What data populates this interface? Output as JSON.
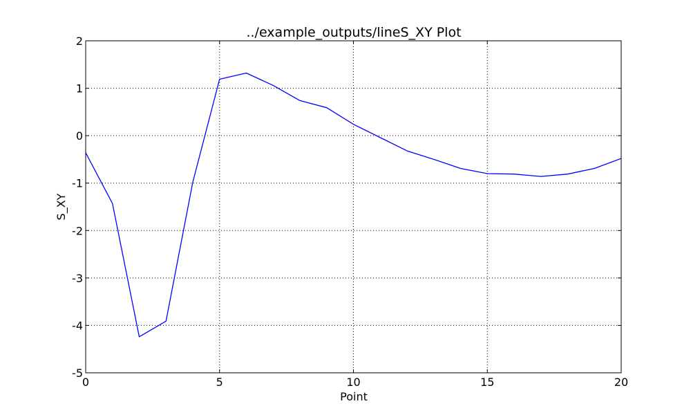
{
  "chart_data": {
    "type": "line",
    "title": "../example_outputs/lineS_XY Plot",
    "xlabel": "Point",
    "ylabel": "S_XY",
    "xlim": [
      0,
      20
    ],
    "ylim": [
      -5,
      2
    ],
    "x_ticks": [
      0,
      5,
      10,
      15,
      20
    ],
    "y_ticks": [
      -5,
      -4,
      -3,
      -2,
      -1,
      0,
      1,
      2
    ],
    "grid": true,
    "series": [
      {
        "color": "#0000ff",
        "x": [
          0,
          1,
          2,
          3,
          4,
          5,
          6,
          7,
          8,
          9,
          10,
          11,
          12,
          13,
          14,
          15,
          16,
          17,
          18,
          19,
          20
        ],
        "y": [
          -0.36,
          -1.43,
          -4.24,
          -3.91,
          -0.98,
          1.19,
          1.32,
          1.06,
          0.74,
          0.59,
          0.24,
          -0.04,
          -0.32,
          -0.5,
          -0.69,
          -0.8,
          -0.81,
          -0.86,
          -0.81,
          -0.69,
          -0.48
        ]
      }
    ]
  }
}
